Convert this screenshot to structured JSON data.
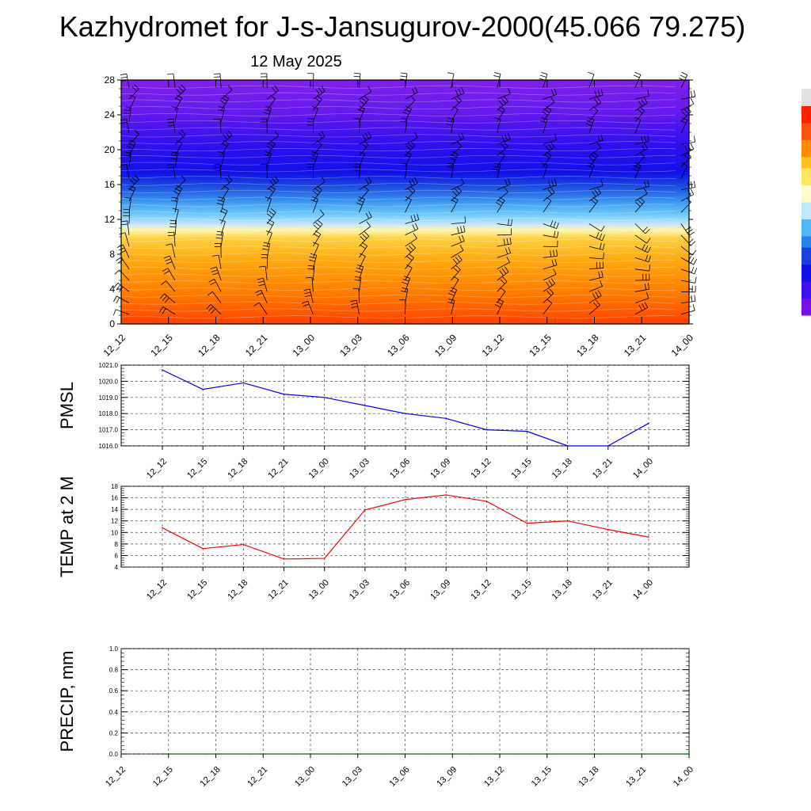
{
  "title": "Kazhydromet for J-s-Jansugurov-2000(45.066 79.275)",
  "subtitle": "12 May 2025",
  "time_labels": [
    "12_12",
    "12_15",
    "12_18",
    "12_21",
    "13_00",
    "13_03",
    "13_06",
    "13_09",
    "13_12",
    "13_15",
    "13_18",
    "13_21",
    "14_00"
  ],
  "chart_data": [
    {
      "type": "heatmap",
      "name": "cross-section",
      "ylim": [
        0,
        28
      ],
      "yticks": [
        "0",
        "4",
        "8",
        "12",
        "16",
        "20",
        "24",
        "28"
      ],
      "categories": [
        "12_12",
        "12_15",
        "12_18",
        "12_21",
        "13_00",
        "13_03",
        "13_06",
        "13_09",
        "13_12",
        "13_15",
        "13_18",
        "13_21",
        "14_00"
      ],
      "colorbar": [
        "#7a10e8",
        "#4010f0",
        "#1010e8",
        "#1a40e0",
        "#2a80f0",
        "#50b8f8",
        "#c0e8ff",
        "#fffacc",
        "#ffe860",
        "#ffc020",
        "#ff8c00",
        "#ff5010",
        "#ff2000",
        "#e0e0e0"
      ],
      "wind_barbs": true,
      "grid": false
    },
    {
      "type": "line",
      "name": "pmsl",
      "ylabel": "PMSL",
      "ylim": [
        1016.0,
        1021.0
      ],
      "yticks": [
        "1016.0",
        "1017.0",
        "1018.0",
        "1019.0",
        "1020.0",
        "1021.0"
      ],
      "categories": [
        "12_12",
        "12_15",
        "12_18",
        "12_21",
        "13_00",
        "13_03",
        "13_06",
        "13_09",
        "13_12",
        "13_15",
        "13_18",
        "13_21",
        "14_00"
      ],
      "series": [
        {
          "values": [
            1020.7,
            1019.5,
            1019.9,
            1019.2,
            1019.0,
            1018.5,
            1018.0,
            1017.7,
            1017.0,
            1016.9,
            1016.0,
            1016.0,
            1017.4
          ],
          "color": "#0000ff"
        }
      ],
      "grid": true
    },
    {
      "type": "line",
      "name": "temp",
      "ylabel": "TEMP at 2 M",
      "ylim": [
        4,
        18
      ],
      "yticks": [
        "4",
        "6",
        "8",
        "10",
        "12",
        "14",
        "16",
        "18"
      ],
      "categories": [
        "12_12",
        "12_15",
        "12_18",
        "12_21",
        "13_00",
        "13_03",
        "13_06",
        "13_09",
        "13_12",
        "13_15",
        "13_18",
        "13_21",
        "14_00"
      ],
      "series": [
        {
          "values": [
            10.8,
            7.2,
            7.9,
            5.4,
            5.5,
            13.9,
            15.7,
            16.5,
            15.4,
            11.6,
            12.0,
            10.5,
            9.2
          ],
          "color": "#ff0000"
        }
      ],
      "grid": true
    },
    {
      "type": "line",
      "name": "precip",
      "ylabel": "PRECIP, mm",
      "ylim": [
        0.0,
        1.0
      ],
      "yticks": [
        "0.0",
        "0.2",
        "0.4",
        "0.6",
        "0.8",
        "1.0"
      ],
      "categories": [
        "12_12",
        "12_15",
        "12_18",
        "12_21",
        "13_00",
        "13_03",
        "13_06",
        "13_09",
        "13_12",
        "13_15",
        "13_18",
        "13_21",
        "14_00"
      ],
      "series": [
        {
          "values": [
            0,
            0,
            0,
            0,
            0,
            0,
            0,
            0,
            0,
            0,
            0,
            0,
            0
          ],
          "color": "#006400"
        }
      ],
      "grid": true
    }
  ]
}
